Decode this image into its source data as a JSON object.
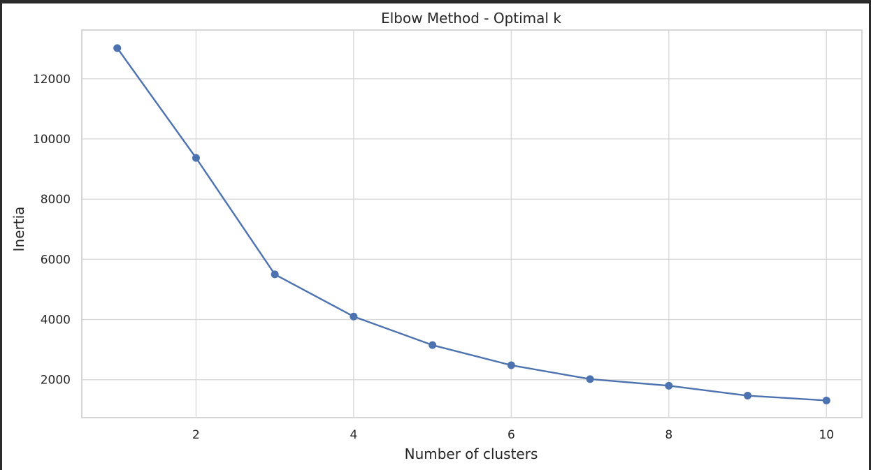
{
  "chart_data": {
    "type": "line",
    "title": "Elbow Method - Optimal k",
    "xlabel": "Number of clusters",
    "ylabel": "Inertia",
    "x": [
      1,
      2,
      3,
      4,
      5,
      6,
      7,
      8,
      9,
      10
    ],
    "series": [
      {
        "values": [
          13020,
          9370,
          5500,
          4100,
          3150,
          2480,
          2020,
          1800,
          1470,
          1310
        ],
        "color": "#4c72b0",
        "marker": "circle"
      }
    ],
    "xticks": [
      "2",
      "4",
      "6",
      "8",
      "10"
    ],
    "yticks": [
      "2000",
      "4000",
      "6000",
      "8000",
      "10000",
      "12000"
    ],
    "xlim": [
      0.55,
      10.45
    ],
    "ylim": [
      740,
      13620
    ],
    "grid": true,
    "legend": "none"
  }
}
